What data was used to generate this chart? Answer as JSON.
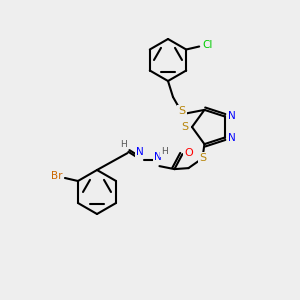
{
  "bg_color": "#eeeeee",
  "bond_color": "#000000",
  "bond_lw": 1.5,
  "atom_colors": {
    "S": "#b8860b",
    "N": "#0000ff",
    "O": "#ff0000",
    "Cl": "#00cc00",
    "Br": "#cc6600",
    "C": "#000000",
    "H": "#555555"
  },
  "font_size": 7.5
}
